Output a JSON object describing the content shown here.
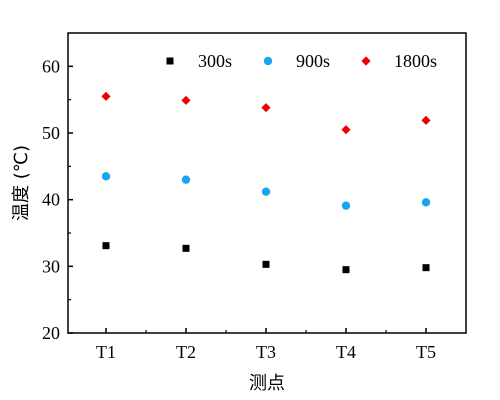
{
  "chart_data": {
    "type": "scatter",
    "categories": [
      "T1",
      "T2",
      "T3",
      "T4",
      "T5"
    ],
    "xlabel": "测点",
    "ylabel": "温度 (℃)",
    "ylim": [
      20,
      65
    ],
    "yticks": [
      20,
      30,
      40,
      50,
      60
    ],
    "grid": false,
    "legend_position": "top",
    "series": [
      {
        "name": "300s",
        "marker": "square",
        "color": "#000000",
        "values": [
          33.1,
          32.7,
          30.3,
          29.5,
          29.8
        ]
      },
      {
        "name": "900s",
        "marker": "circle",
        "color": "#1aa3ee",
        "values": [
          43.5,
          43.0,
          41.2,
          39.1,
          39.6
        ]
      },
      {
        "name": "1800s",
        "marker": "diamond",
        "color": "#ee0000",
        "values": [
          55.5,
          54.9,
          53.8,
          50.5,
          51.9
        ]
      }
    ]
  }
}
